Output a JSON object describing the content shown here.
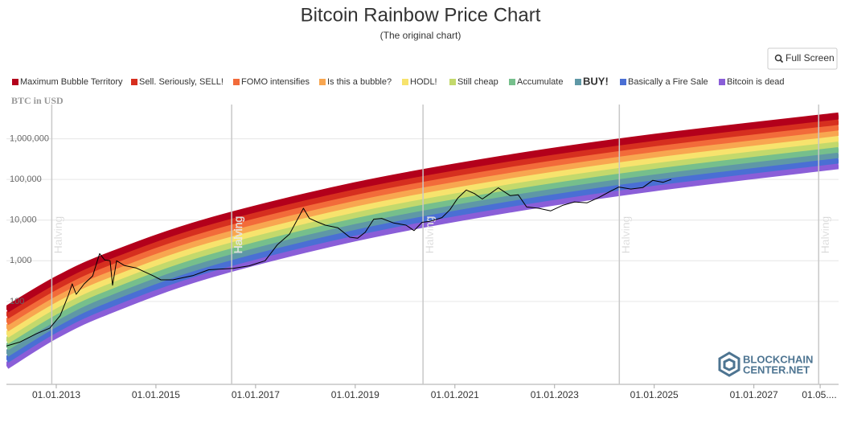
{
  "ui": {
    "button": "Full Screen"
  },
  "chart_data": {
    "type": "line",
    "title": "Bitcoin Rainbow Price Chart",
    "subtitle": "(The original chart)",
    "y_label": "BTC in USD",
    "y_scale": "log",
    "grid": true,
    "legend": "top-left",
    "xlim": [
      2012.0,
      2028.7
    ],
    "ylim": [
      1,
      12000000
    ],
    "xticks": [
      {
        "value": 2013,
        "label": "01.01.2013"
      },
      {
        "value": 2015,
        "label": "01.01.2015"
      },
      {
        "value": 2017,
        "label": "01.01.2017"
      },
      {
        "value": 2019,
        "label": "01.01.2019"
      },
      {
        "value": 2021,
        "label": "01.01.2021"
      },
      {
        "value": 2023,
        "label": "01.01.2023"
      },
      {
        "value": 2025,
        "label": "01.01.2025"
      },
      {
        "value": 2027,
        "label": "01.01.2027"
      },
      {
        "value": 2028.33,
        "label": "01.05...."
      }
    ],
    "yticks": [
      100,
      {
        "value": 1000,
        "label": "1,000"
      },
      {
        "value": 10000,
        "label": "10,000"
      },
      {
        "value": 100000,
        "label": "100,000"
      },
      {
        "value": 1000000,
        "label": "1,000,000"
      }
    ],
    "x": [
      2012.0,
      2013,
      2014,
      2016,
      2019,
      2022,
      2025,
      2028.7
    ],
    "series": [
      {
        "name": "Maximum Bubble Territory",
        "color": "#b3001b",
        "values": [
          63.5,
          338,
          1240,
          8830,
          70300,
          323000,
          1084000,
          3650000
        ]
      },
      {
        "name": "Sell. Seriously, SELL!",
        "color": "#d62f1f",
        "values": [
          44.5,
          238,
          879,
          6310,
          50600,
          234000,
          789000,
          2670000
        ]
      },
      {
        "name": "FOMO intensifies",
        "color": "#f26b3a",
        "values": [
          31.1,
          168,
          622,
          4510,
          36400,
          169000,
          574000,
          1950000
        ]
      },
      {
        "name": "Is this a bubble?",
        "color": "#f8a650",
        "values": [
          21.8,
          119,
          442,
          3210,
          26200,
          123000,
          418000,
          1430000
        ]
      },
      {
        "name": "HODL!",
        "color": "#f7e36d",
        "values": [
          15.3,
          84,
          313,
          2300,
          18900,
          88900,
          304000,
          1040000
        ]
      },
      {
        "name": "Still cheap",
        "color": "#c3d96c",
        "values": [
          10.7,
          59,
          221,
          1640,
          13600,
          64300,
          221000,
          764000
        ]
      },
      {
        "name": "Accumulate",
        "color": "#76bf8c",
        "values": [
          7.5,
          41,
          157,
          1170,
          9770,
          46600,
          161000,
          558000
        ]
      },
      {
        "name": "BUY!",
        "color": "#5f98a6",
        "values": [
          5.2,
          29,
          111,
          837,
          7030,
          33700,
          117000,
          408000
        ]
      },
      {
        "name": "Basically a Fire Sale",
        "color": "#4a6fd4",
        "values": [
          3.7,
          21,
          79,
          598,
          5070,
          24400,
          85300,
          299000
        ]
      },
      {
        "name": "Bitcoin is dead",
        "color": "#8a5ed8",
        "values": [
          2.6,
          15,
          56,
          428,
          3650,
          17700,
          62100,
          218000
        ]
      }
    ],
    "price": {
      "color": "#000000",
      "x": [
        2012.0,
        2012.27,
        2012.6,
        2012.87,
        2013.08,
        2013.24,
        2013.32,
        2013.4,
        2013.56,
        2013.73,
        2013.87,
        2013.97,
        2014.08,
        2014.13,
        2014.21,
        2014.37,
        2014.61,
        2014.94,
        2015.1,
        2015.34,
        2015.74,
        2016.06,
        2016.55,
        2016.87,
        2017.19,
        2017.44,
        2017.68,
        2017.96,
        2018.08,
        2018.24,
        2018.4,
        2018.65,
        2018.89,
        2019.05,
        2019.2,
        2019.37,
        2019.53,
        2019.77,
        2020.02,
        2020.18,
        2020.34,
        2020.5,
        2020.74,
        2020.9,
        2021.06,
        2021.23,
        2021.39,
        2021.55,
        2021.71,
        2021.87,
        2022.11,
        2022.27,
        2022.44,
        2022.68,
        2022.92,
        2023.16,
        2023.4,
        2023.65,
        2023.89,
        2024.13,
        2024.29,
        2024.53,
        2024.77,
        2024.97,
        2025.18,
        2025.34
      ],
      "values": [
        8,
        10,
        16,
        22,
        45,
        140,
        270,
        150,
        270,
        420,
        1500,
        1050,
        1000,
        250,
        1000,
        760,
        660,
        430,
        340,
        340,
        430,
        600,
        650,
        750,
        1000,
        2500,
        4500,
        19500,
        11000,
        9000,
        7500,
        6500,
        3800,
        3600,
        5000,
        10500,
        11000,
        8500,
        7500,
        5500,
        8800,
        9300,
        11500,
        18000,
        35000,
        55000,
        45000,
        33000,
        45000,
        62000,
        40000,
        42000,
        21000,
        19500,
        16800,
        23000,
        28000,
        26500,
        36000,
        52000,
        65000,
        58000,
        63000,
        95000,
        85000,
        100000
      ]
    },
    "halvings": {
      "label": "Halving",
      "x": [
        2012.91,
        2016.52,
        2020.36,
        2024.3,
        2028.3
      ]
    },
    "watermark": [
      "BLOCKCHAIN",
      "CENTER.NET"
    ]
  }
}
